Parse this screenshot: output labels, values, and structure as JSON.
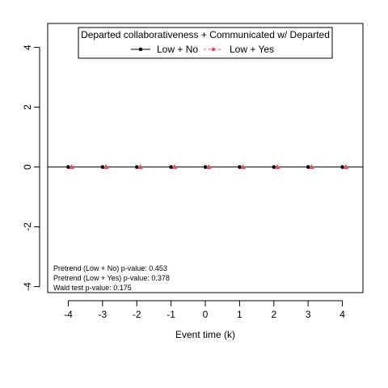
{
  "chart_data": {
    "type": "scatter",
    "title": "",
    "xlabel": "Event time (k)",
    "ylabel": "",
    "xlim": [
      -4.6,
      4.6
    ],
    "ylim": [
      -4.2,
      4.8
    ],
    "x_ticks": [
      -4,
      -3,
      -2,
      -1,
      0,
      1,
      2,
      3,
      4
    ],
    "y_ticks": [
      -4,
      -2,
      0,
      2,
      4
    ],
    "reference_line_y": 0,
    "legend": {
      "title": "Departed collaborativeness + Communicated w/ Departed",
      "placement": "top"
    },
    "series": [
      {
        "name": "Low + No",
        "color": "#000000",
        "marker": "circle",
        "line": "solid",
        "x": [
          -4,
          -3,
          -2,
          -1,
          0,
          1,
          2,
          3,
          4
        ],
        "values": [
          0,
          0,
          0,
          0,
          0,
          0,
          0,
          0,
          0
        ]
      },
      {
        "name": "Low + Yes",
        "color": "#DF536B",
        "marker": "triangle",
        "line": "dashed",
        "x": [
          -3.9,
          -2.9,
          -1.9,
          -0.9,
          0.1,
          1.1,
          2.1,
          3.1,
          4.1
        ],
        "values": [
          0,
          0,
          0,
          0,
          0,
          0,
          0,
          0,
          0
        ]
      }
    ],
    "annotations": [
      "Pretrend (Low + No) p-value: 0.453",
      "Pretrend (Low + Yes) p-value: 0.378",
      "Wald test p-value: 0.175"
    ]
  }
}
